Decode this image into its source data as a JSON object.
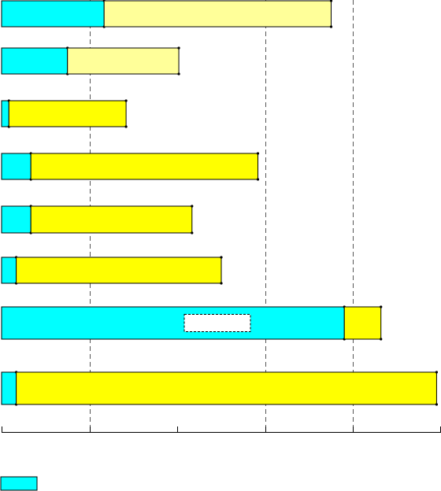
{
  "chart_data": {
    "type": "bar",
    "orientation": "horizontal",
    "stacked": true,
    "categories": [
      "",
      "",
      "",
      "",
      "",
      "",
      "",
      ""
    ],
    "series": [
      {
        "color": "#00FFFF",
        "values": [
          70,
          45,
          5,
          20,
          20,
          10,
          234,
          10
        ]
      },
      {
        "color": "#FFFF00",
        "values": [
          155,
          76,
          80,
          155,
          110,
          140,
          25,
          287
        ]
      }
    ],
    "highlight_bars": [
      {
        "index": 0,
        "second_color": "#FFFF99"
      },
      {
        "index": 1,
        "second_color": "#FFFF99"
      }
    ],
    "xlim": [
      0,
      300
    ],
    "xticks": [
      0,
      60,
      120,
      180,
      240,
      300
    ],
    "grid_values": [
      60,
      180,
      240
    ],
    "xlabel": "",
    "title": "",
    "legend": {
      "placement": "bottom-left",
      "entries": [
        {
          "color": "#00FFFF"
        }
      ]
    },
    "annotation_box": {
      "bar_index": 6,
      "text": ""
    }
  }
}
